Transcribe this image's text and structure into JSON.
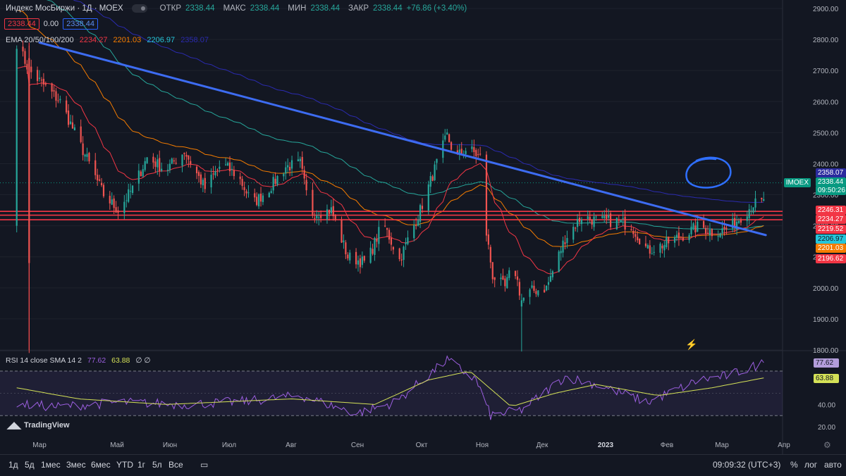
{
  "header": {
    "title": "Индекс МосБиржи · 1Д · MOEX",
    "open_label": "ОТКР",
    "open": "2338.44",
    "high_label": "МАКС",
    "high": "2338.44",
    "low_label": "МИН",
    "low": "2338.44",
    "close_label": "ЗАКР",
    "close": "2338.44",
    "change": "+76.86 (+3.40%)",
    "sell_box": "2338.44",
    "spread": "0.00",
    "buy_box": "2338.44"
  },
  "ema_legend": {
    "label": "EMA 20/50/100/200",
    "v20": "2234.27",
    "v50": "2201.03",
    "v100": "2206.97",
    "v200": "2358.07"
  },
  "rsi_legend": {
    "label": "RSI 14 close SMA 14 2",
    "rsi": "77.62",
    "sma": "63.88",
    "extra": "∅ ∅"
  },
  "symbol_tag": "IMOEX",
  "price_tags": [
    {
      "text": "2358.07",
      "price": 2358.07,
      "bg": "#2b2b9e",
      "fg": "#ffffff"
    },
    {
      "text": "2338.44",
      "price": 2338.44,
      "bg": "#089981",
      "fg": "#ffffff"
    },
    {
      "text": "09:50:26",
      "price": 2313,
      "bg": "#089981",
      "fg": "#ffffff"
    },
    {
      "text": "2246.31",
      "price": 2246.31,
      "bg": "#f23645",
      "fg": "#ffffff"
    },
    {
      "text": "2234.27",
      "price": 2234.27,
      "bg": "#f23645",
      "fg": "#ffffff"
    },
    {
      "text": "2219.52",
      "price": 2219.52,
      "bg": "#f23645",
      "fg": "#ffffff"
    },
    {
      "text": "2206.97",
      "price": 2206.97,
      "bg": "#26c6da",
      "fg": "#131722"
    },
    {
      "text": "2201.03",
      "price": 2201.03,
      "bg": "#f57c00",
      "fg": "#ffffff"
    },
    {
      "text": "2196.62",
      "price": 2196.62,
      "bg": "#f23645",
      "fg": "#ffffff"
    }
  ],
  "rsi_tags": [
    {
      "text": "77.62",
      "value": 77.62,
      "bg": "#b39ddb",
      "fg": "#131722"
    },
    {
      "text": "63.88",
      "value": 63.88,
      "bg": "#d4e157",
      "fg": "#131722"
    }
  ],
  "toolbar": {
    "intervals": [
      "1д",
      "5д",
      "1мес",
      "3мес",
      "6мес",
      "YTD",
      "1г",
      "5л",
      "Все"
    ],
    "clock": "09:09:32 (UTC+3)",
    "percent": "%",
    "log": "лог",
    "auto": "авто"
  },
  "branding": "TradingView",
  "colors": {
    "up": "#26a69a",
    "down": "#ef5350",
    "trend": "#3d6cf2",
    "ema20": "#f23645",
    "ema50": "#f57c00",
    "ema100": "#26a69a",
    "ema200": "#2b2bb0",
    "rsi": "#9c5fe0",
    "rsi_sma": "#d4e157"
  },
  "chart_data": [
    {
      "type": "candlestick",
      "title": "Индекс МосБиржи · 1Д · MOEX",
      "y_ticks": [
        1800,
        1900,
        2000,
        2100,
        2200,
        2300,
        2400,
        2500,
        2600,
        2700,
        2800,
        2900
      ],
      "ylim": [
        1795,
        2930
      ],
      "x_ticks": [
        "Мар",
        "Май",
        "Июн",
        "Июл",
        "Авг",
        "Сен",
        "Окт",
        "Ноя",
        "Дек",
        "2023",
        "Фев",
        "Мар",
        "Апр"
      ],
      "horizontal_levels": [
        2246.31,
        2234.27,
        2219.52
      ],
      "trendline": [
        {
          "date": "2022-03-01",
          "price": 2790
        },
        {
          "date": "2023-02-15",
          "price": 2170
        }
      ],
      "anchors": [
        {
          "date": "2022-02-18",
          "price": 2790
        },
        {
          "date": "2022-02-24",
          "price": 2700
        },
        {
          "date": "2022-03-11",
          "price": 2600
        },
        {
          "date": "2022-03-18",
          "price": 2500
        },
        {
          "date": "2022-03-25",
          "price": 2400
        },
        {
          "date": "2022-04-01",
          "price": 2300
        },
        {
          "date": "2022-04-08",
          "price": 2250
        },
        {
          "date": "2022-04-15",
          "price": 2320
        },
        {
          "date": "2022-04-22",
          "price": 2420
        },
        {
          "date": "2022-05-01",
          "price": 2380
        },
        {
          "date": "2022-05-10",
          "price": 2440
        },
        {
          "date": "2022-05-20",
          "price": 2320
        },
        {
          "date": "2022-05-28",
          "price": 2400
        },
        {
          "date": "2022-06-05",
          "price": 2360
        },
        {
          "date": "2022-06-12",
          "price": 2270
        },
        {
          "date": "2022-06-20",
          "price": 2320
        },
        {
          "date": "2022-06-28",
          "price": 2390
        },
        {
          "date": "2022-07-05",
          "price": 2400
        },
        {
          "date": "2022-07-10",
          "price": 2240
        },
        {
          "date": "2022-07-20",
          "price": 2250
        },
        {
          "date": "2022-07-28",
          "price": 2100
        },
        {
          "date": "2022-08-06",
          "price": 2080
        },
        {
          "date": "2022-08-14",
          "price": 2210
        },
        {
          "date": "2022-08-22",
          "price": 2090
        },
        {
          "date": "2022-09-01",
          "price": 2250
        },
        {
          "date": "2022-09-10",
          "price": 2420
        },
        {
          "date": "2022-09-14",
          "price": 2490
        },
        {
          "date": "2022-09-18",
          "price": 2420
        },
        {
          "date": "2022-09-24",
          "price": 2450
        },
        {
          "date": "2022-09-30",
          "price": 2420
        },
        {
          "date": "2022-10-02",
          "price": 2220
        },
        {
          "date": "2022-10-06",
          "price": 2040
        },
        {
          "date": "2022-10-12",
          "price": 2000
        },
        {
          "date": "2022-10-16",
          "price": 2080
        },
        {
          "date": "2022-10-20",
          "price": 1960
        },
        {
          "date": "2022-10-25",
          "price": 1990
        },
        {
          "date": "2022-11-01",
          "price": 2000
        },
        {
          "date": "2022-11-10",
          "price": 2160
        },
        {
          "date": "2022-11-18",
          "price": 2230
        },
        {
          "date": "2022-11-26",
          "price": 2215
        },
        {
          "date": "2022-12-05",
          "price": 2215
        },
        {
          "date": "2022-12-12",
          "price": 2200
        },
        {
          "date": "2022-12-20",
          "price": 2120
        },
        {
          "date": "2022-12-28",
          "price": 2140
        },
        {
          "date": "2023-01-06",
          "price": 2170
        },
        {
          "date": "2023-01-14",
          "price": 2200
        },
        {
          "date": "2023-01-20",
          "price": 2180
        },
        {
          "date": "2023-01-28",
          "price": 2190
        },
        {
          "date": "2023-02-03",
          "price": 2230
        },
        {
          "date": "2023-02-09",
          "price": 2270
        },
        {
          "date": "2023-02-14",
          "price": 2275
        }
      ]
    },
    {
      "type": "line",
      "title": "RSI 14 close SMA 14 2",
      "y_ticks": [
        20,
        40
      ],
      "ylim": [
        15,
        90
      ],
      "bands": [
        70,
        30
      ],
      "rsi_anchors": [
        {
          "date": "2022-02-18",
          "value": 40
        },
        {
          "date": "2022-03-10",
          "value": 38
        },
        {
          "date": "2022-04-10",
          "value": 42
        },
        {
          "date": "2022-05-10",
          "value": 40
        },
        {
          "date": "2022-06-10",
          "value": 43
        },
        {
          "date": "2022-07-05",
          "value": 48
        },
        {
          "date": "2022-08-01",
          "value": 32
        },
        {
          "date": "2022-08-20",
          "value": 42
        },
        {
          "date": "2022-09-14",
          "value": 80
        },
        {
          "date": "2022-09-28",
          "value": 62
        },
        {
          "date": "2022-10-05",
          "value": 30
        },
        {
          "date": "2022-10-20",
          "value": 35
        },
        {
          "date": "2022-11-10",
          "value": 65
        },
        {
          "date": "2022-11-25",
          "value": 58
        },
        {
          "date": "2022-12-20",
          "value": 42
        },
        {
          "date": "2023-01-14",
          "value": 62
        },
        {
          "date": "2023-01-28",
          "value": 66
        },
        {
          "date": "2023-02-09",
          "value": 74
        },
        {
          "date": "2023-02-14",
          "value": 77.62
        }
      ],
      "sma_anchors": [
        {
          "date": "2022-02-18",
          "value": 55
        },
        {
          "date": "2022-03-20",
          "value": 45
        },
        {
          "date": "2022-05-01",
          "value": 40
        },
        {
          "date": "2022-07-01",
          "value": 45
        },
        {
          "date": "2022-08-10",
          "value": 40
        },
        {
          "date": "2022-09-05",
          "value": 62
        },
        {
          "date": "2022-09-25",
          "value": 70
        },
        {
          "date": "2022-10-15",
          "value": 38
        },
        {
          "date": "2022-11-05",
          "value": 50
        },
        {
          "date": "2022-11-25",
          "value": 58
        },
        {
          "date": "2022-12-25",
          "value": 48
        },
        {
          "date": "2023-01-20",
          "value": 55
        },
        {
          "date": "2023-02-14",
          "value": 63.88
        }
      ]
    }
  ]
}
